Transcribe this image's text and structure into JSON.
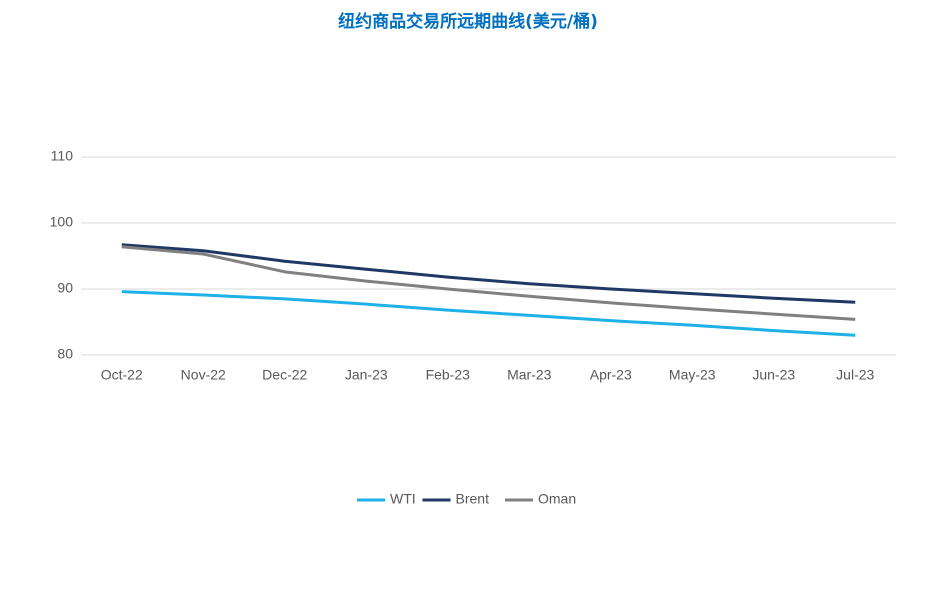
{
  "chart_data": {
    "type": "line",
    "title": "纽约商品交易所远期曲线(美元/桶)",
    "categories": [
      "Oct-22",
      "Nov-22",
      "Dec-22",
      "Jan-23",
      "Feb-23",
      "Mar-23",
      "Apr-23",
      "May-23",
      "Jun-23",
      "Jul-23"
    ],
    "series": [
      {
        "name": "WTI",
        "color": "#1eb1e7",
        "values": [
          89.6,
          89.1,
          88.5,
          87.7,
          86.8,
          86.0,
          85.2,
          84.5,
          83.7,
          83.0
        ]
      },
      {
        "name": "Brent",
        "color": "#203864",
        "values": [
          96.7,
          95.8,
          94.2,
          93.0,
          91.8,
          90.8,
          90.0,
          89.3,
          88.6,
          88.0
        ]
      },
      {
        "name": "Oman",
        "color": "#808080",
        "values": [
          96.4,
          95.3,
          92.6,
          91.2,
          90.0,
          88.9,
          87.9,
          87.0,
          86.2,
          85.4
        ]
      }
    ],
    "ylim": [
      80,
      110
    ],
    "yticks": [
      80,
      90,
      100,
      110
    ],
    "grid": true,
    "legend": "bottom"
  }
}
